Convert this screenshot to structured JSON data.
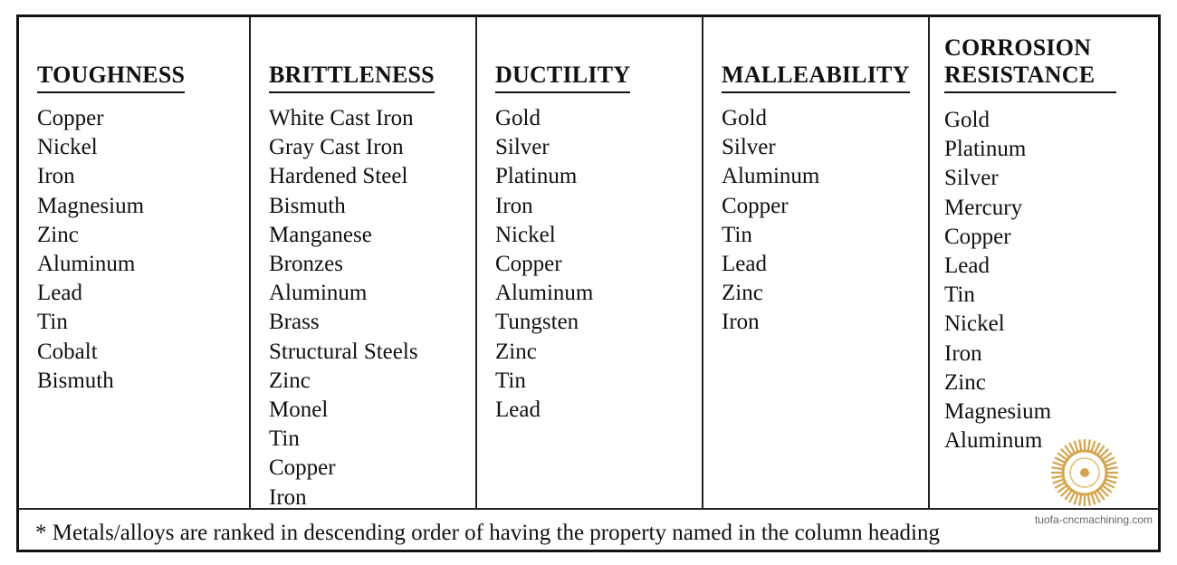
{
  "table": {
    "columns": [
      {
        "heading": "TOUGHNESS",
        "items": [
          "Copper",
          "Nickel",
          "Iron",
          "Magnesium",
          "Zinc",
          "Aluminum",
          "Lead",
          "Tin",
          "Cobalt",
          "Bismuth"
        ]
      },
      {
        "heading": "BRITTLENESS",
        "items": [
          "White Cast Iron",
          "Gray Cast Iron",
          "Hardened Steel",
          "Bismuth",
          "Manganese",
          "Bronzes",
          "Aluminum",
          "Brass",
          "Structural Steels",
          "Zinc",
          "Monel",
          "Tin",
          "Copper",
          "Iron"
        ]
      },
      {
        "heading": "DUCTILITY",
        "items": [
          "Gold",
          "Silver",
          "Platinum",
          "Iron",
          "Nickel",
          "Copper",
          "Aluminum",
          "Tungsten",
          "Zinc",
          "Tin",
          "Lead"
        ]
      },
      {
        "heading": "MALLEABILITY",
        "items": [
          "Gold",
          "Silver",
          "Aluminum",
          "Copper",
          "Tin",
          "Lead",
          "Zinc",
          "Iron"
        ]
      },
      {
        "heading": "CORROSION RESISTANCE",
        "items": [
          "Gold",
          "Platinum",
          "Silver",
          "Mercury",
          "Copper",
          "Lead",
          "Tin",
          "Nickel",
          "Iron",
          "Zinc",
          "Magnesium",
          "Aluminum"
        ]
      }
    ]
  },
  "footnote": "* Metals/alloys are ranked in descending order of having the property named in the column heading",
  "watermark": "tuofa-cncmachining.com",
  "seal": {
    "icon": "company-seal-icon",
    "color": "#d6a44a"
  }
}
